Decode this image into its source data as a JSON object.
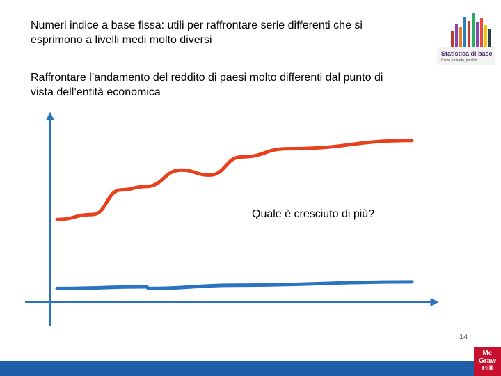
{
  "slide": {
    "paragraph1": "Numeri indice a base fissa: utili per raffrontare serie differenti che si esprimono a livelli medi molto diversi",
    "paragraph2": "Raffrontare l’andamento del reddito di paesi molto differenti dal punto di vista dell’entità economica",
    "question": "Quale è cresciuto di più?",
    "page_number": "14"
  },
  "book_cover": {
    "title": "Statistica di base",
    "subtitle": "Come, quando, perché"
  },
  "logo": {
    "line1": "Mc",
    "line2": "Graw",
    "line3": "Hill"
  },
  "colors": {
    "upper_curve": "#e8401c",
    "lower_curve": "#2a73c0",
    "footer_bar": "#1f5fa7",
    "logo": "#c8102e"
  },
  "chart_data": {
    "type": "line",
    "series": [
      {
        "points": [
          [
            0,
            52
          ],
          [
            10,
            55
          ],
          [
            18,
            70
          ],
          [
            25,
            72
          ],
          [
            35,
            82
          ],
          [
            43,
            79
          ],
          [
            52,
            90
          ],
          [
            65,
            95
          ],
          [
            100,
            100
          ]
        ]
      },
      {
        "points": [
          [
            0,
            10
          ],
          [
            25,
            11
          ],
          [
            26,
            10
          ],
          [
            50,
            12
          ],
          [
            100,
            14
          ]
        ]
      }
    ],
    "xlim": [
      0,
      100
    ],
    "ylim": [
      0,
      105
    ]
  }
}
